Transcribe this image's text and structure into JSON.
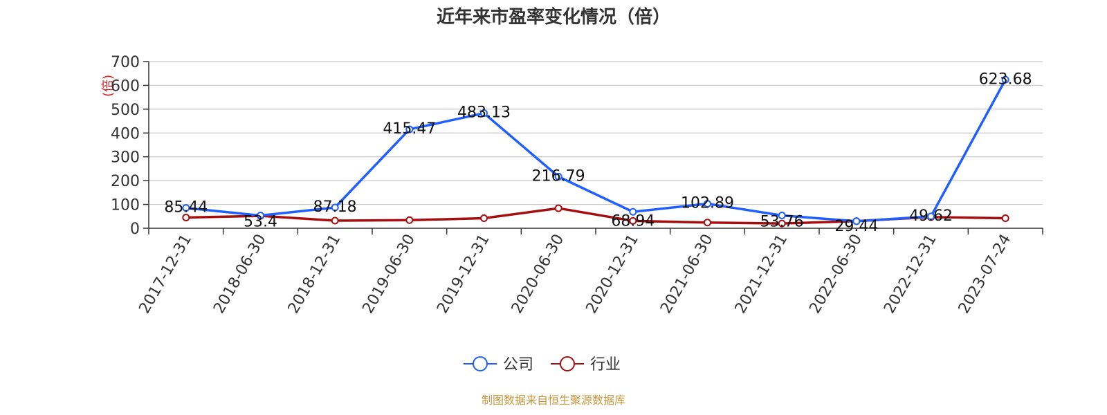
{
  "chart_data": {
    "type": "line",
    "title": "近年来市盈率变化情况（倍）",
    "ylabel": "(倍)",
    "xlabel": "",
    "ylim": [
      0,
      700
    ],
    "yticks": [
      0,
      100,
      200,
      300,
      400,
      500,
      600,
      700
    ],
    "ytick_labels": [
      "0",
      "100",
      "200",
      "300",
      "400",
      "500",
      "600",
      "700"
    ],
    "categories": [
      "2017-12-31",
      "2018-06-30",
      "2018-12-31",
      "2019-06-30",
      "2019-12-31",
      "2020-06-30",
      "2020-12-31",
      "2021-06-30",
      "2021-12-31",
      "2022-06-30",
      "2022-12-31",
      "2023-07-24"
    ],
    "grid": true,
    "legend_position": "bottom",
    "series": [
      {
        "name": "公司",
        "color": "#1f5fff",
        "values": [
          85.44,
          53.4,
          87.18,
          415.47,
          483.13,
          216.79,
          68.94,
          102.89,
          53.76,
          29.44,
          49.62,
          623.68
        ],
        "labels": [
          "85.44",
          "53.4",
          "87.18",
          "415.47",
          "483.13",
          "216.79",
          "68.94",
          "102.89",
          "53.76",
          "29.44",
          "49.62",
          "623.68"
        ]
      },
      {
        "name": "行业",
        "color": "#a50e0e",
        "values": [
          45,
          52,
          32,
          34,
          42,
          84,
          31,
          24,
          20,
          30,
          47,
          42
        ]
      }
    ]
  },
  "source": {
    "text": "制图数据来自恒生聚源数据库",
    "color": "#c8963c"
  },
  "ylabel_color": "#d61f1f"
}
